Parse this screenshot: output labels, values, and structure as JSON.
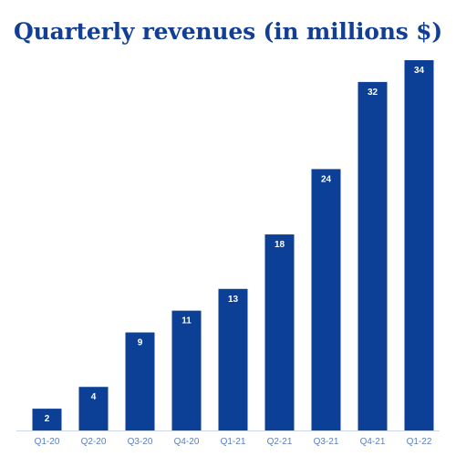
{
  "colors": {
    "bar": "#0c3f96",
    "title": "#123f94",
    "tick_label": "#5b7fc0",
    "baseline": "#cfd8e8"
  },
  "chart_data": {
    "type": "bar",
    "title": "Quarterly revenues (in millions $)",
    "xlabel": "",
    "ylabel": "",
    "categories": [
      "Q1-20",
      "Q2-20",
      "Q3-20",
      "Q4-20",
      "Q1-21",
      "Q2-21",
      "Q3-21",
      "Q4-21",
      "Q1-22"
    ],
    "values": [
      2,
      4,
      9,
      11,
      13,
      18,
      24,
      32,
      34
    ],
    "ylim": [
      0,
      34
    ],
    "grid": false,
    "legend": "none",
    "data_labels": true
  }
}
